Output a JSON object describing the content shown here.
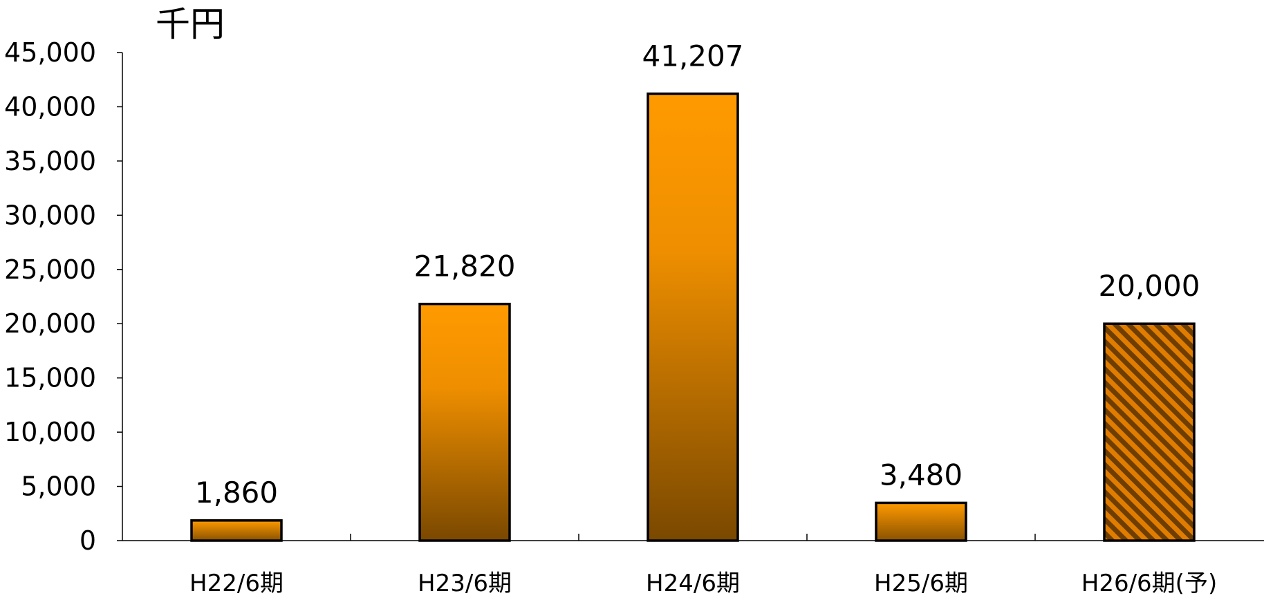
{
  "chart_data": {
    "type": "bar",
    "unit_label": "千円",
    "categories": [
      "H22/6期",
      "H23/6期",
      "H24/6期",
      "H25/6期",
      "H26/6期(予)"
    ],
    "values": [
      1860,
      21820,
      41207,
      3480,
      20000
    ],
    "value_labels": [
      "1,860",
      "21,820",
      "41,207",
      "3,480",
      "20,000"
    ],
    "forecast": [
      false,
      false,
      false,
      false,
      true
    ],
    "ylim": [
      0,
      45000
    ],
    "ytick_step": 5000,
    "ytick_labels": [
      "0",
      "5,000",
      "10,000",
      "15,000",
      "20,000",
      "25,000",
      "30,000",
      "35,000",
      "40,000",
      "45,000"
    ],
    "grid": false,
    "legend": "none",
    "colors": {
      "bar_top": "#ff9a00",
      "bar_bottom": "#7a4800",
      "hatch_stripe": "#e07d00",
      "hatch_gap": "#6e3d00",
      "axis": "#000000"
    }
  }
}
